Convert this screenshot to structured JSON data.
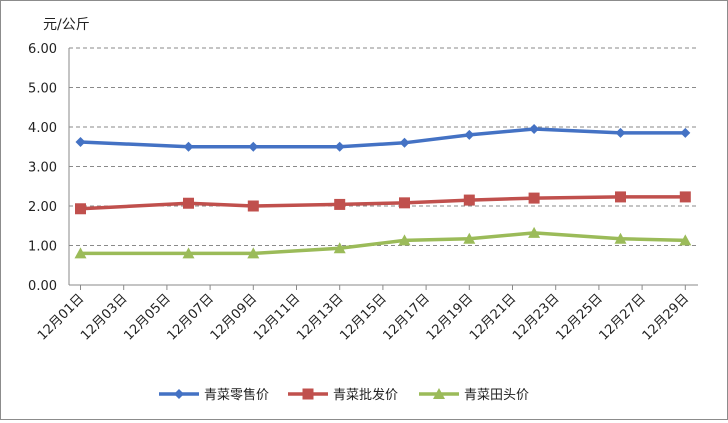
{
  "chart_data": {
    "type": "line",
    "ylabel": "元/公斤",
    "ylim": [
      0,
      6
    ],
    "yticks": [
      "0.00",
      "1.00",
      "2.00",
      "3.00",
      "4.00",
      "5.00",
      "6.00"
    ],
    "categories": [
      "12月01日",
      "12月03日",
      "12月05日",
      "12月07日",
      "12月09日",
      "12月11日",
      "12月13日",
      "12月15日",
      "12月17日",
      "12月19日",
      "12月21日",
      "12月23日",
      "12月25日",
      "12月27日",
      "12月29日"
    ],
    "x": [
      "12月01日",
      "12月06日",
      "12月09日",
      "12月13日",
      "12月16日",
      "12月19日",
      "12月22日",
      "12月26日",
      "12月29日"
    ],
    "series": [
      {
        "name": "青菜零售价",
        "color": "#4472C4",
        "marker": "diamond",
        "values": [
          3.62,
          3.5,
          3.5,
          3.5,
          3.6,
          3.8,
          3.95,
          3.85,
          3.85
        ]
      },
      {
        "name": "青菜批发价",
        "color": "#C0504D",
        "marker": "square",
        "values": [
          1.93,
          2.07,
          2.0,
          2.04,
          2.08,
          2.15,
          2.2,
          2.23,
          2.23
        ]
      },
      {
        "name": "青菜田头价",
        "color": "#9BBB59",
        "marker": "triangle",
        "values": [
          0.8,
          0.8,
          0.8,
          0.93,
          1.13,
          1.17,
          1.32,
          1.17,
          1.13
        ]
      }
    ],
    "grid": true,
    "legend": "bottom"
  }
}
